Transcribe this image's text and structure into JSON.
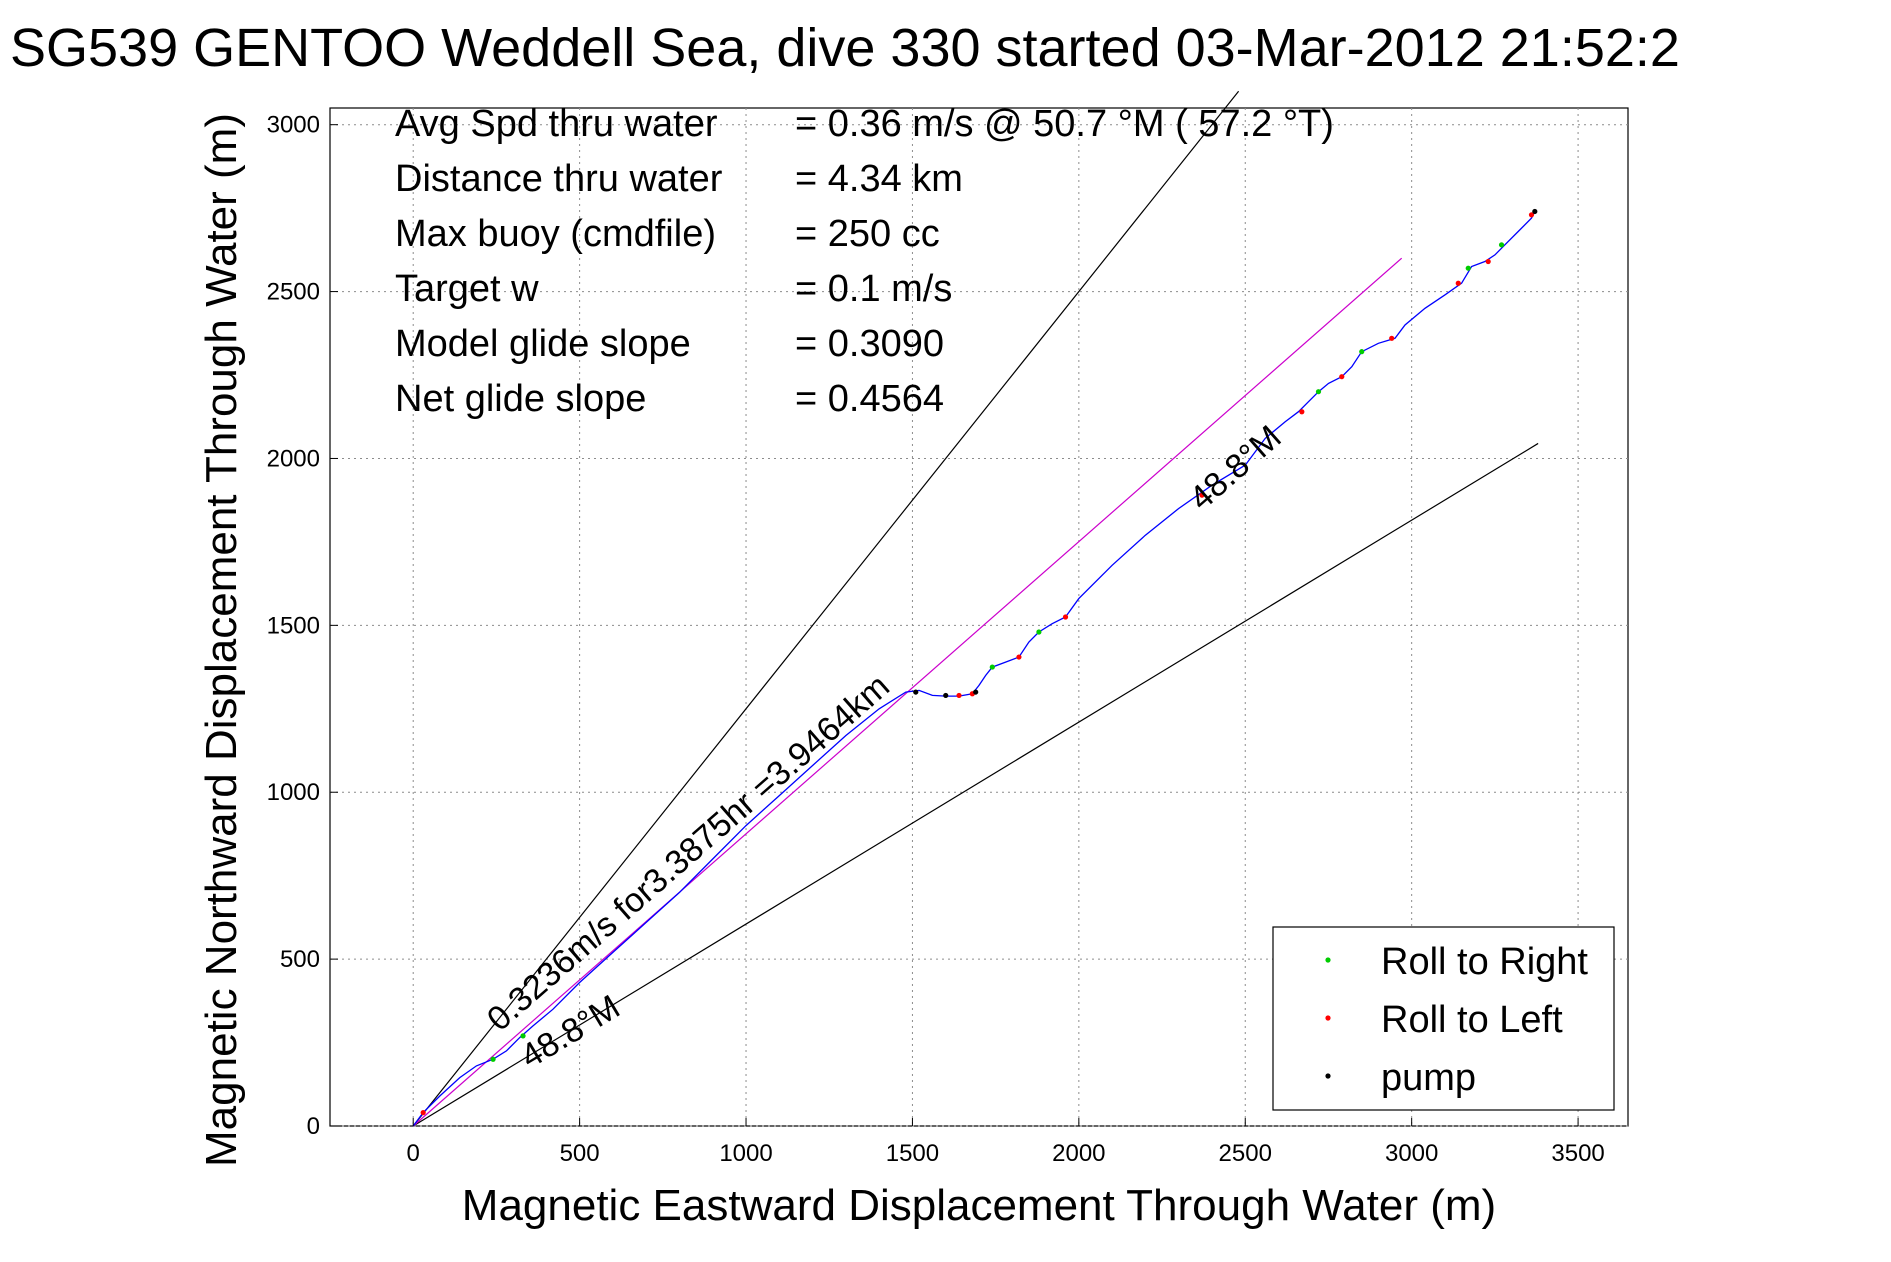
{
  "chart_data": {
    "type": "line",
    "title": "SG539 GENTOO Weddell Sea, dive 330 started 03-Mar-2012 21:52:2",
    "xlabel": "Magnetic Eastward Displacement Through Water (m)",
    "ylabel": "Magnetic Northward Displacement Through Water (m)",
    "xlim": [
      -250,
      3650
    ],
    "ylim": [
      0,
      3050
    ],
    "xticks": [
      0,
      500,
      1000,
      1500,
      2000,
      2500,
      3000,
      3500
    ],
    "yticks": [
      0,
      500,
      1000,
      1500,
      2000,
      2500,
      3000
    ],
    "grid": true,
    "legend_position": "bottom-right",
    "stats": [
      {
        "label": "Avg Spd thru water",
        "value": "=  0.36 m/s @  50.7 °M ( 57.2 °T)"
      },
      {
        "label": "Distance thru water",
        "value": "=  4.34 km"
      },
      {
        "label": "Max buoy (cmdfile)",
        "value": "= 250 cc"
      },
      {
        "label": "Target w",
        "value": "= 0.1 m/s"
      },
      {
        "label": "Model glide slope",
        "value": "= 0.3090"
      },
      {
        "label": "Net glide slope",
        "value": "= 0.4564"
      }
    ],
    "annotations": [
      {
        "text": "0.3236m/s for3.3875hr =3.9464km",
        "x": 260,
        "y": 280,
        "angle": 41.2
      },
      {
        "text": "48.8°M",
        "x": 350,
        "y": 170,
        "angle": 31
      },
      {
        "text": "48.8°M",
        "x": 2370,
        "y": 1840,
        "angle": 41.2
      }
    ],
    "reference_lines": [
      {
        "name": "bound-upper",
        "color": "#000000",
        "x": [
          0,
          2480
        ],
        "y": [
          0,
          3100
        ]
      },
      {
        "name": "bound-lower",
        "color": "#000000",
        "x": [
          0,
          3380
        ],
        "y": [
          0,
          2045
        ]
      },
      {
        "name": "model-heading",
        "color": "#cc00cc",
        "x": [
          0,
          2970
        ],
        "y": [
          0,
          2600
        ]
      }
    ],
    "series": [
      {
        "name": "",
        "color": "#0000ff",
        "x": [
          0,
          30,
          80,
          140,
          190,
          240,
          280,
          320,
          360,
          420,
          500,
          600,
          700,
          800,
          900,
          1000,
          1100,
          1200,
          1300,
          1400,
          1480,
          1520,
          1560,
          1600,
          1640,
          1680,
          1700,
          1720,
          1740,
          1780,
          1820,
          1850,
          1880,
          1920,
          1960,
          2000,
          2100,
          2200,
          2300,
          2400,
          2500,
          2560,
          2620,
          2660,
          2690,
          2720,
          2750,
          2790,
          2820,
          2850,
          2900,
          2950,
          2980,
          3040,
          3100,
          3150,
          3180,
          3220,
          3250,
          3280,
          3320,
          3360,
          3370
        ],
        "y": [
          0,
          40,
          90,
          145,
          180,
          200,
          225,
          265,
          300,
          350,
          430,
          520,
          610,
          700,
          800,
          900,
          990,
          1080,
          1170,
          1250,
          1300,
          1305,
          1290,
          1288,
          1288,
          1295,
          1320,
          1350,
          1375,
          1390,
          1405,
          1450,
          1480,
          1505,
          1525,
          1580,
          1680,
          1770,
          1850,
          1920,
          1980,
          2060,
          2110,
          2140,
          2170,
          2200,
          2225,
          2245,
          2275,
          2320,
          2345,
          2360,
          2400,
          2450,
          2490,
          2525,
          2575,
          2590,
          2610,
          2640,
          2680,
          2720,
          2740
        ]
      }
    ],
    "markers": [
      {
        "name": "Roll to Right",
        "color": "#00cc00",
        "x": [
          240,
          330,
          1740,
          1880,
          2720,
          2850,
          3170,
          3270
        ],
        "y": [
          200,
          270,
          1375,
          1480,
          2200,
          2320,
          2570,
          2640
        ]
      },
      {
        "name": "Roll to Left",
        "color": "#ff0000",
        "x": [
          30,
          1640,
          1680,
          1820,
          1960,
          2370,
          2670,
          2790,
          2940,
          3140,
          3230,
          3360
        ],
        "y": [
          40,
          1290,
          1295,
          1405,
          1525,
          1890,
          2140,
          2245,
          2360,
          2525,
          2590,
          2730
        ]
      },
      {
        "name": "pump",
        "color": "#000000",
        "x": [
          1510,
          1600,
          1690,
          3370
        ],
        "y": [
          1300,
          1290,
          1300,
          2740
        ]
      }
    ],
    "legend": [
      "Roll to Right",
      "Roll to Left",
      "pump"
    ]
  }
}
